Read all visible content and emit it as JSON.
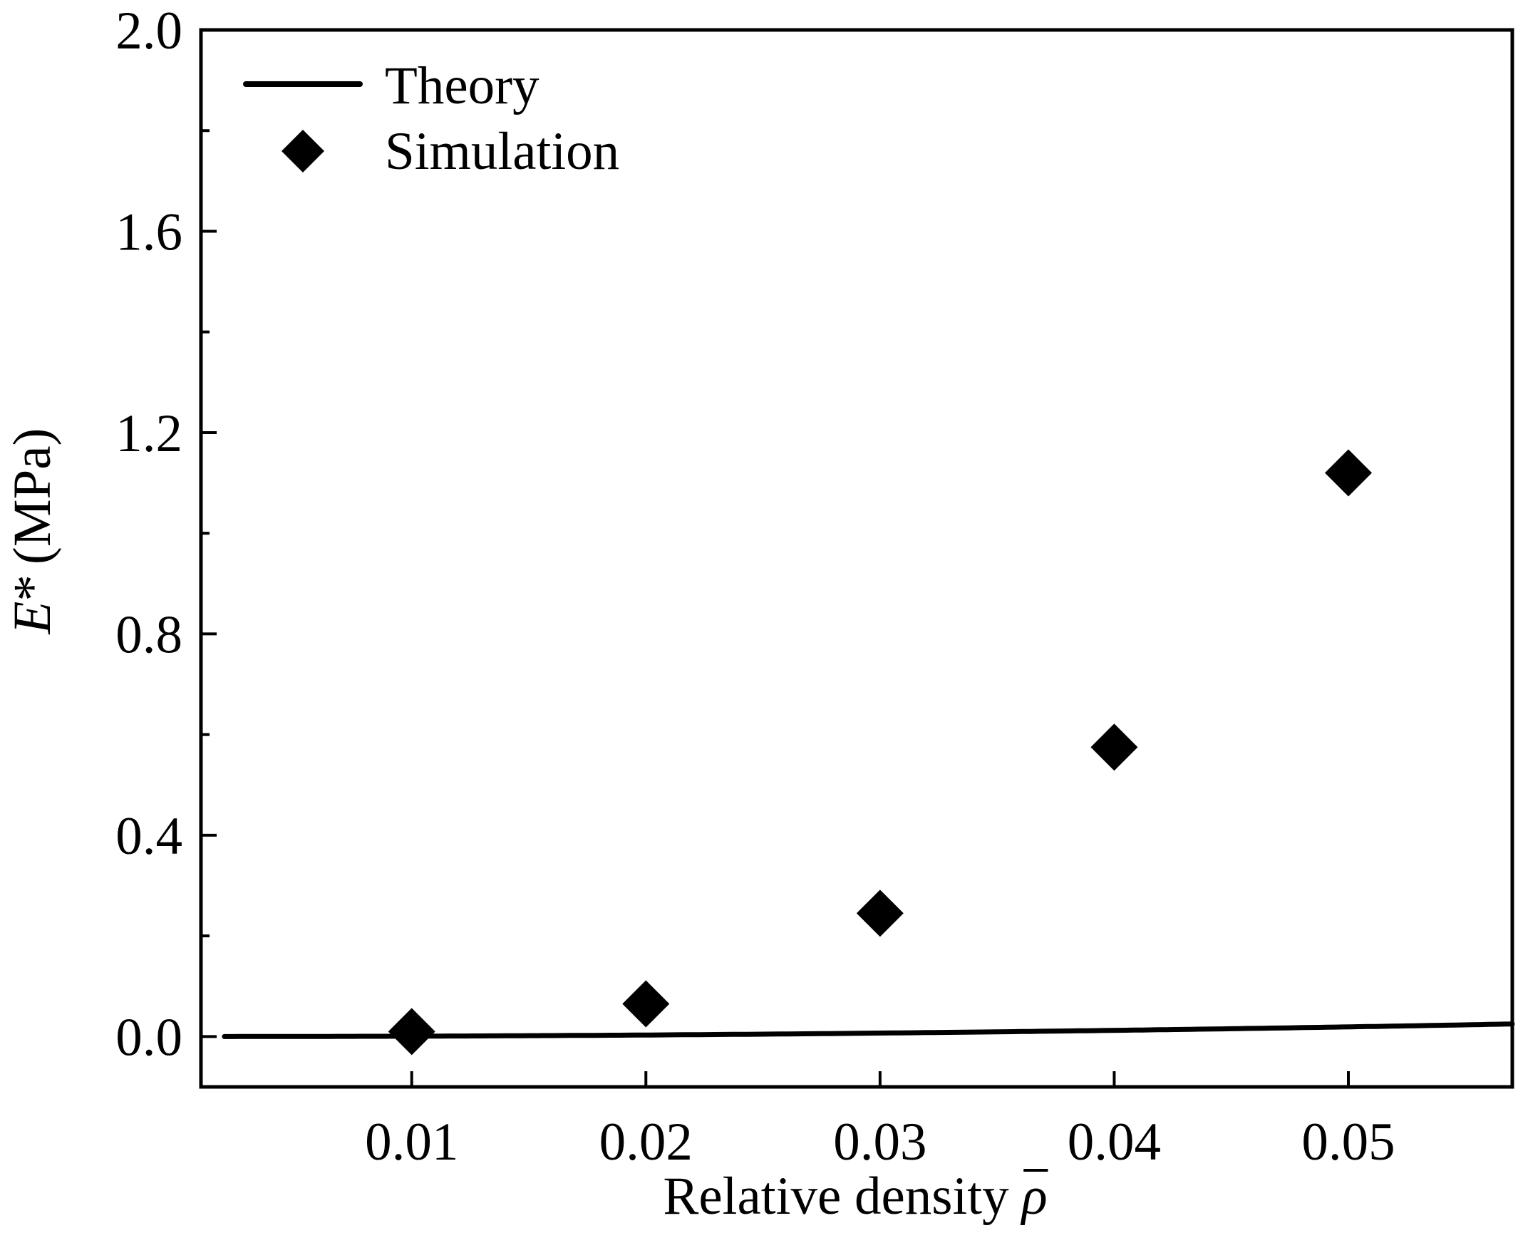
{
  "chart_data": {
    "type": "line",
    "xlabel": "Relative density",
    "xlabel_symbol": "ρ",
    "ylabel_symbol": "E",
    "ylabel_sup": "*",
    "ylabel_unit": "(MPa)",
    "xlim": [
      0.001,
      0.057
    ],
    "ylim": [
      -0.1,
      2.0
    ],
    "xticks": [
      0.01,
      0.02,
      0.03,
      0.04,
      0.05
    ],
    "xtick_labels": [
      "0.01",
      "0.02",
      "0.03",
      "0.04",
      "0.05"
    ],
    "yticks": [
      0.0,
      0.4,
      0.8,
      1.2,
      1.6,
      2.0
    ],
    "ytick_labels": [
      "0.0",
      "0.4",
      "0.8",
      "1.2",
      "1.6",
      "2.0"
    ],
    "y_minor_ticks": [
      0.2,
      0.6,
      1.0,
      1.4,
      1.8
    ],
    "grid": false,
    "legend_position": "top-left",
    "series": [
      {
        "name": "Theory",
        "kind": "line",
        "color": "#000000",
        "model": "E = 7.7 * rho^2",
        "coefficient": 7.7,
        "exponent": 2,
        "x_range": [
          0.002,
          0.057
        ]
      },
      {
        "name": "Simulation",
        "kind": "scatter",
        "marker": "diamond",
        "color": "#000000",
        "x": [
          0.01,
          0.02,
          0.03,
          0.04,
          0.05
        ],
        "y": [
          0.01,
          0.065,
          0.245,
          0.575,
          1.12
        ]
      }
    ]
  }
}
